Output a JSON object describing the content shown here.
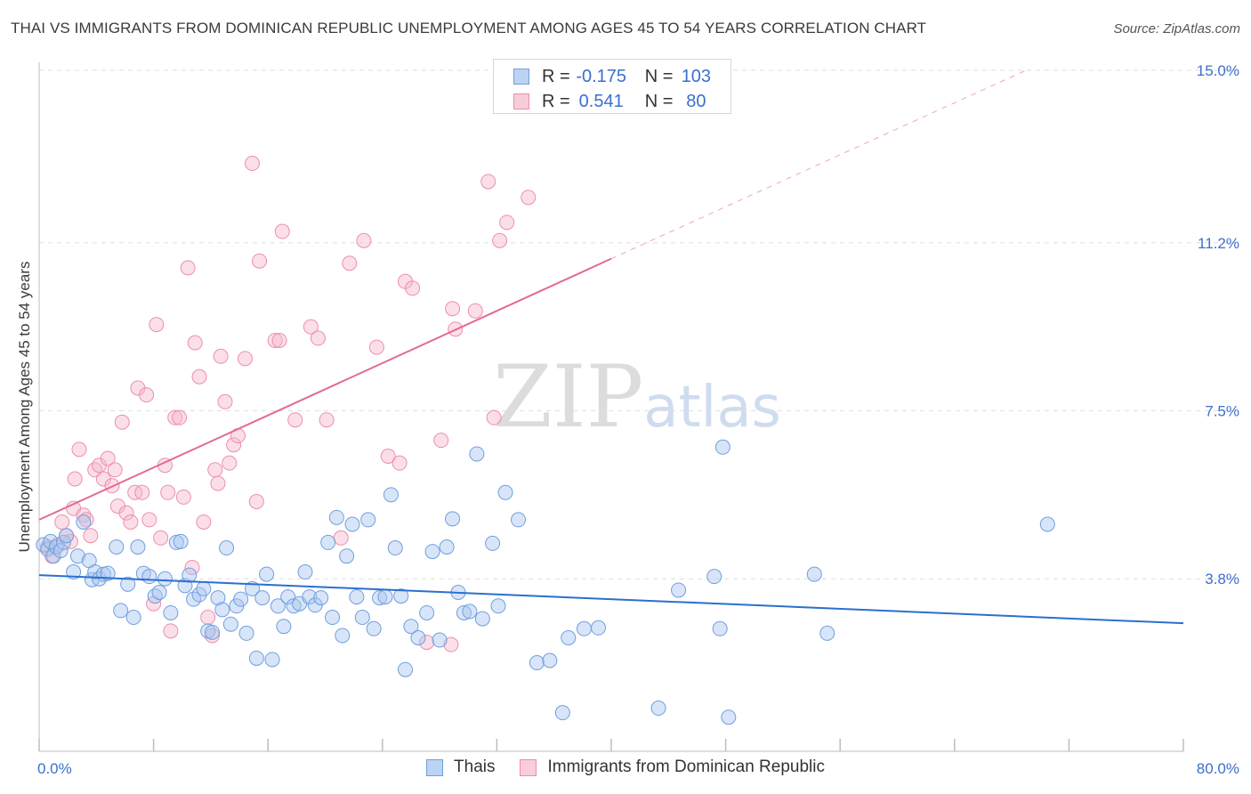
{
  "title": "THAI VS IMMIGRANTS FROM DOMINICAN REPUBLIC UNEMPLOYMENT AMONG AGES 45 TO 54 YEARS CORRELATION CHART",
  "source": "Source: ZipAtlas.com",
  "watermark": {
    "zip": "ZIP",
    "atlas": "atlas"
  },
  "colors": {
    "thai_fill": "#a9c6ef",
    "thai_stroke": "#6f9fdf",
    "thai_line": "#2a6fcf",
    "dr_fill": "#f6b9cb",
    "dr_stroke": "#ec8fab",
    "dr_line": "#e46a94",
    "axis_text": "#3b6fd0",
    "grid": "#dedede"
  },
  "legend": {
    "r_label": "R =",
    "n_label": "N =",
    "thai": {
      "r": "-0.175",
      "n": "103"
    },
    "dr": {
      "r": "0.541",
      "n": "80"
    }
  },
  "bottom_legend": {
    "thai": "Thais",
    "dr": "Immigrants from Dominican Republic"
  },
  "chart_data": {
    "type": "scatter",
    "title": "THAI VS IMMIGRANTS FROM DOMINICAN REPUBLIC UNEMPLOYMENT AMONG AGES 45 TO 54 YEARS CORRELATION CHART",
    "xlabel": "",
    "ylabel": "Unemployment Among Ages 45 to 54 years",
    "xlim": [
      0,
      80
    ],
    "ylim": [
      0,
      15.7
    ],
    "x_tick_labels": [
      "0.0%",
      "80.0%"
    ],
    "y_ticks": [
      3.8,
      7.5,
      11.2,
      15.0
    ],
    "y_tick_labels": [
      "3.8%",
      "7.5%",
      "11.2%",
      "15.0%"
    ],
    "grid": true,
    "series": [
      {
        "name": "Thais",
        "r": -0.175,
        "n": 103,
        "trend": {
          "x": [
            0,
            80
          ],
          "y": [
            3.88,
            2.82
          ]
        },
        "points": [
          [
            0.3,
            4.55
          ],
          [
            0.6,
            4.45
          ],
          [
            0.8,
            4.62
          ],
          [
            1.0,
            4.3
          ],
          [
            1.2,
            4.5
          ],
          [
            1.5,
            4.42
          ],
          [
            1.7,
            4.6
          ],
          [
            1.9,
            4.75
          ],
          [
            2.4,
            3.95
          ],
          [
            2.7,
            4.3
          ],
          [
            3.1,
            5.05
          ],
          [
            3.5,
            4.2
          ],
          [
            3.7,
            3.78
          ],
          [
            3.9,
            3.95
          ],
          [
            4.2,
            3.8
          ],
          [
            4.5,
            3.9
          ],
          [
            4.8,
            3.92
          ],
          [
            5.4,
            4.5
          ],
          [
            5.7,
            3.1
          ],
          [
            6.2,
            3.68
          ],
          [
            6.6,
            2.95
          ],
          [
            6.9,
            4.5
          ],
          [
            7.3,
            3.92
          ],
          [
            7.7,
            3.85
          ],
          [
            8.1,
            3.42
          ],
          [
            8.4,
            3.5
          ],
          [
            8.8,
            3.8
          ],
          [
            9.2,
            3.05
          ],
          [
            9.6,
            4.6
          ],
          [
            9.9,
            4.62
          ],
          [
            10.2,
            3.65
          ],
          [
            10.5,
            3.88
          ],
          [
            10.8,
            3.35
          ],
          [
            11.2,
            3.45
          ],
          [
            11.5,
            3.58
          ],
          [
            11.8,
            2.65
          ],
          [
            12.1,
            2.62
          ],
          [
            12.5,
            3.38
          ],
          [
            12.8,
            3.12
          ],
          [
            13.1,
            4.48
          ],
          [
            13.4,
            2.8
          ],
          [
            13.8,
            3.2
          ],
          [
            14.1,
            3.35
          ],
          [
            14.5,
            2.6
          ],
          [
            14.9,
            3.58
          ],
          [
            15.2,
            2.05
          ],
          [
            15.6,
            3.38
          ],
          [
            15.9,
            3.9
          ],
          [
            16.3,
            2.02
          ],
          [
            16.7,
            3.2
          ],
          [
            17.1,
            2.75
          ],
          [
            17.4,
            3.4
          ],
          [
            17.8,
            3.2
          ],
          [
            18.2,
            3.25
          ],
          [
            18.6,
            3.95
          ],
          [
            18.9,
            3.4
          ],
          [
            19.3,
            3.22
          ],
          [
            19.7,
            3.38
          ],
          [
            20.2,
            4.6
          ],
          [
            20.5,
            2.95
          ],
          [
            20.8,
            5.15
          ],
          [
            21.2,
            2.55
          ],
          [
            21.5,
            4.3
          ],
          [
            21.9,
            5.0
          ],
          [
            22.2,
            3.4
          ],
          [
            22.6,
            2.95
          ],
          [
            23.0,
            5.1
          ],
          [
            23.4,
            2.7
          ],
          [
            23.8,
            3.38
          ],
          [
            24.2,
            3.4
          ],
          [
            24.6,
            5.65
          ],
          [
            24.9,
            4.48
          ],
          [
            25.3,
            3.42
          ],
          [
            25.6,
            1.8
          ],
          [
            26.0,
            2.75
          ],
          [
            26.5,
            2.5
          ],
          [
            27.1,
            3.05
          ],
          [
            27.5,
            4.4
          ],
          [
            28.0,
            2.45
          ],
          [
            28.5,
            4.5
          ],
          [
            28.9,
            5.12
          ],
          [
            29.3,
            3.5
          ],
          [
            29.7,
            3.05
          ],
          [
            30.1,
            3.08
          ],
          [
            30.6,
            6.55
          ],
          [
            31.0,
            2.92
          ],
          [
            31.7,
            4.58
          ],
          [
            32.1,
            3.2
          ],
          [
            32.6,
            5.7
          ],
          [
            33.5,
            5.1
          ],
          [
            34.8,
            1.95
          ],
          [
            35.7,
            2.0
          ],
          [
            36.6,
            0.85
          ],
          [
            37.0,
            2.5
          ],
          [
            38.1,
            2.7
          ],
          [
            39.1,
            2.72
          ],
          [
            43.3,
            0.95
          ],
          [
            44.7,
            3.55
          ],
          [
            47.2,
            3.85
          ],
          [
            47.6,
            2.7
          ],
          [
            47.8,
            6.7
          ],
          [
            48.2,
            0.75
          ],
          [
            54.2,
            3.9
          ],
          [
            55.1,
            2.6
          ],
          [
            70.5,
            5.0
          ]
        ]
      },
      {
        "name": "Immigrants from Dominican Republic",
        "r": 0.541,
        "n": 80,
        "trend": {
          "x": [
            0,
            40
          ],
          "y": [
            5.1,
            10.85
          ]
        },
        "trend_extension": {
          "x": [
            40,
            69
          ],
          "y": [
            10.85,
            15.0
          ]
        },
        "points": [
          [
            0.6,
            4.5
          ],
          [
            0.9,
            4.3
          ],
          [
            1.3,
            4.55
          ],
          [
            1.6,
            5.05
          ],
          [
            1.9,
            4.75
          ],
          [
            2.2,
            4.62
          ],
          [
            2.4,
            5.35
          ],
          [
            2.5,
            6.0
          ],
          [
            2.8,
            6.65
          ],
          [
            3.1,
            5.2
          ],
          [
            3.3,
            5.1
          ],
          [
            3.6,
            4.75
          ],
          [
            3.9,
            6.2
          ],
          [
            4.2,
            6.3
          ],
          [
            4.5,
            6.0
          ],
          [
            4.8,
            6.45
          ],
          [
            5.1,
            5.85
          ],
          [
            5.3,
            6.2
          ],
          [
            5.5,
            5.4
          ],
          [
            5.8,
            7.25
          ],
          [
            6.1,
            5.25
          ],
          [
            6.4,
            5.05
          ],
          [
            6.7,
            5.7
          ],
          [
            6.9,
            8.0
          ],
          [
            7.2,
            5.7
          ],
          [
            7.5,
            7.85
          ],
          [
            7.7,
            5.1
          ],
          [
            8.0,
            3.25
          ],
          [
            8.2,
            9.4
          ],
          [
            8.5,
            4.7
          ],
          [
            8.8,
            6.3
          ],
          [
            9.0,
            5.7
          ],
          [
            9.2,
            2.65
          ],
          [
            9.5,
            7.35
          ],
          [
            9.8,
            7.35
          ],
          [
            10.1,
            5.6
          ],
          [
            10.4,
            10.65
          ],
          [
            10.7,
            4.05
          ],
          [
            10.9,
            9.0
          ],
          [
            11.2,
            8.25
          ],
          [
            11.5,
            5.05
          ],
          [
            11.8,
            2.95
          ],
          [
            12.1,
            2.55
          ],
          [
            12.3,
            6.2
          ],
          [
            12.5,
            5.9
          ],
          [
            12.7,
            8.7
          ],
          [
            13.0,
            7.7
          ],
          [
            13.3,
            6.35
          ],
          [
            13.6,
            6.75
          ],
          [
            13.9,
            6.95
          ],
          [
            14.4,
            8.65
          ],
          [
            14.9,
            12.95
          ],
          [
            15.2,
            5.5
          ],
          [
            15.4,
            10.8
          ],
          [
            16.5,
            9.05
          ],
          [
            16.8,
            9.05
          ],
          [
            17.0,
            11.45
          ],
          [
            17.9,
            7.3
          ],
          [
            19.0,
            9.35
          ],
          [
            19.5,
            9.1
          ],
          [
            20.1,
            7.3
          ],
          [
            21.1,
            4.7
          ],
          [
            21.7,
            10.75
          ],
          [
            22.7,
            11.25
          ],
          [
            24.4,
            6.5
          ],
          [
            25.2,
            6.35
          ],
          [
            25.6,
            10.35
          ],
          [
            26.1,
            10.2
          ],
          [
            27.1,
            2.4
          ],
          [
            28.1,
            6.85
          ],
          [
            28.8,
            2.35
          ],
          [
            28.9,
            9.75
          ],
          [
            29.1,
            9.3
          ],
          [
            30.5,
            9.7
          ],
          [
            31.4,
            12.55
          ],
          [
            31.8,
            7.35
          ],
          [
            32.2,
            11.25
          ],
          [
            32.7,
            11.65
          ],
          [
            34.2,
            12.2
          ],
          [
            23.6,
            8.9
          ]
        ]
      }
    ]
  }
}
